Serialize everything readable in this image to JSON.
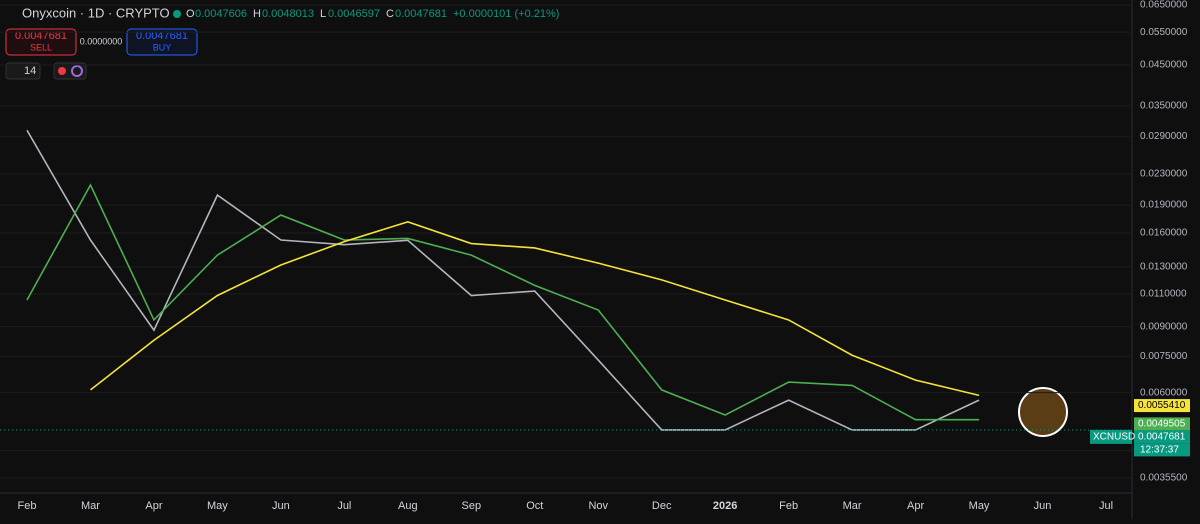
{
  "header": {
    "symbol": "Onyxcoin · 1D · CRYPTO",
    "open_label": "O",
    "open": "0.0047606",
    "high_label": "H",
    "high": "0.0048013",
    "low_label": "L",
    "low": "0.0046597",
    "close_label": "C",
    "close": "0.0047681",
    "change": "+0.0000101 (+0.21%)"
  },
  "trade": {
    "sell_price": "0.0047681",
    "sell": "SELL",
    "spread": "0.0000000",
    "buy_price": "0.0047681",
    "buy": "BUY",
    "indicator": "14"
  },
  "chart_data": {
    "type": "line",
    "log_scale": true,
    "categories": [
      "Feb",
      "Mar",
      "Apr",
      "May",
      "Jun",
      "Jul",
      "Aug",
      "Sep",
      "Oct",
      "Nov",
      "Dec",
      "2026",
      "Feb",
      "Mar",
      "Apr",
      "May",
      "Jun",
      "Jul"
    ],
    "series": [
      {
        "name": "XCNUSD",
        "color": "#b2b5be",
        "values": [
          0.0301,
          0.01533,
          0.00881,
          0.0202,
          0.01533,
          0.0149,
          0.0153,
          0.0109,
          0.0112,
          0.00733,
          0.00477,
          0.00477,
          0.00573,
          0.00477,
          0.00477,
          0.00573,
          null,
          null
        ]
      },
      {
        "name": "MA 50",
        "color": "#4caf50",
        "values": [
          0.0106,
          0.0215,
          0.00938,
          0.01397,
          0.01787,
          0.01533,
          0.01548,
          0.01397,
          0.0116,
          0.00997,
          0.0061,
          0.00523,
          0.0064,
          0.00627,
          0.00508,
          0.00508,
          null,
          null
        ]
      },
      {
        "name": "MA 200",
        "color": "#f5e33a",
        "values": [
          null,
          0.0061,
          0.00828,
          0.0109,
          0.01315,
          0.01518,
          0.01714,
          0.015,
          0.0146,
          0.0133,
          0.012,
          0.0106,
          0.00938,
          0.00755,
          0.00648,
          0.0059,
          null,
          null
        ]
      }
    ],
    "ylim": [
      0.00355,
      0.065
    ],
    "yticks": [
      {
        "value": 0.065,
        "label": "0.0650000"
      },
      {
        "value": 0.055,
        "label": "0.0550000"
      },
      {
        "value": 0.045,
        "label": "0.0450000"
      },
      {
        "value": 0.035,
        "label": "0.0350000"
      },
      {
        "value": 0.029,
        "label": "0.0290000"
      },
      {
        "value": 0.023,
        "label": "0.0230000"
      },
      {
        "value": 0.019,
        "label": "0.0190000"
      },
      {
        "value": 0.016,
        "label": "0.0160000"
      },
      {
        "value": 0.013,
        "label": "0.0130000"
      },
      {
        "value": 0.011,
        "label": "0.0110000"
      },
      {
        "value": 0.009,
        "label": "0.0090000"
      },
      {
        "value": 0.0075,
        "label": "0.0075000"
      },
      {
        "value": 0.006,
        "label": "0.0060000"
      },
      {
        "value": 0.0042,
        "label": "0.0042000"
      },
      {
        "value": 0.00355,
        "label": "0.0035500"
      }
    ],
    "badges": [
      {
        "value": 0.005541,
        "label": "0.0055410",
        "color": "#f5e33a"
      },
      {
        "value": 0.0049505,
        "label": "0.0049505",
        "color": "#4caf50"
      },
      {
        "value": 0.0047681,
        "label": "0.0047681",
        "color": "#089981"
      }
    ],
    "symbol_tag": "XCNUSD",
    "countdown": "12:37:37"
  }
}
